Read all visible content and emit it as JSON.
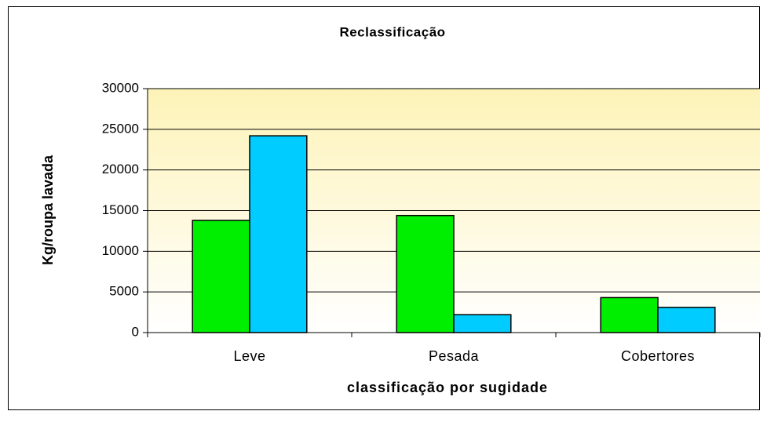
{
  "chart_data": {
    "type": "bar",
    "title": "Reclassificação",
    "x_label": "classificação por sugidade",
    "y_label": "Kg/roupa lavada",
    "categories": [
      "Leve",
      "Pesada",
      "Cobertores"
    ],
    "series": [
      {
        "color": "#00ee00",
        "values": [
          13800,
          14400,
          4300
        ]
      },
      {
        "color": "#00ccff",
        "values": [
          24200,
          2200,
          3100
        ]
      }
    ],
    "ylim": [
      0,
      30000
    ],
    "yticks": [
      0,
      5000,
      10000,
      15000,
      20000,
      25000,
      30000
    ],
    "grid": true
  }
}
